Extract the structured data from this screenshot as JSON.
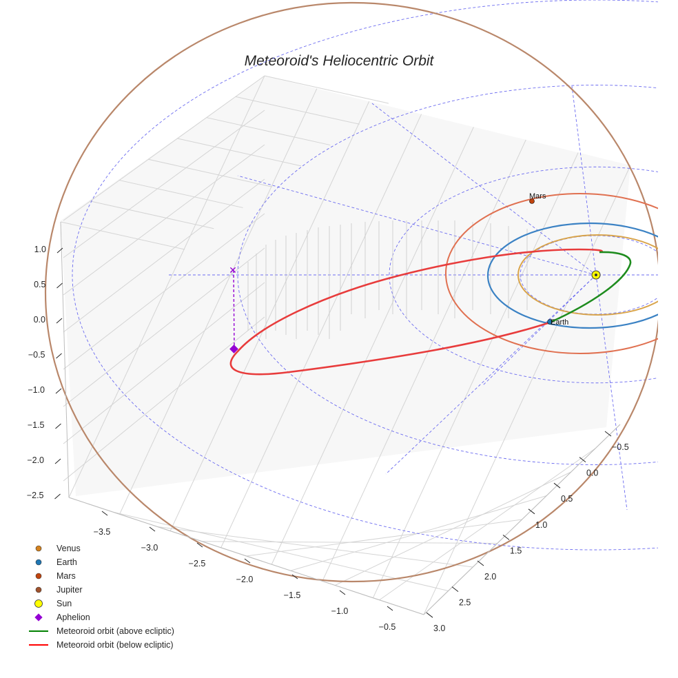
{
  "chart_data": {
    "type": "3d-line",
    "title": "Meteoroid's Heliocentric Orbit",
    "axes": {
      "x": {
        "ticks": [
          "−3.5",
          "−3.0",
          "−2.5",
          "−2.0",
          "−1.5",
          "−1.0",
          "−0.5"
        ]
      },
      "y": {
        "ticks": [
          "−0.5",
          "0.0",
          "0.5",
          "1.0",
          "1.5",
          "2.0",
          "2.5",
          "3.0"
        ]
      },
      "z": {
        "ticks": [
          "1.0",
          "0.5",
          "0.0",
          "−0.5",
          "−1.0",
          "−1.5",
          "−2.0",
          "−2.5"
        ]
      }
    },
    "legend": [
      {
        "label": "Venus",
        "color": "#d4821f",
        "marker": "circle"
      },
      {
        "label": "Earth",
        "color": "#1f77b4",
        "marker": "circle"
      },
      {
        "label": "Mars",
        "color": "#c1440e",
        "marker": "circle"
      },
      {
        "label": "Jupiter",
        "color": "#a0522d",
        "marker": "circle"
      },
      {
        "label": "Sun",
        "color": "#ffff00",
        "marker": "big-circle"
      },
      {
        "label": "Aphelion",
        "color": "#9400d3",
        "marker": "diamond"
      },
      {
        "label": "Meteoroid orbit (above ecliptic)",
        "color": "#008000",
        "marker": "line"
      },
      {
        "label": "Meteoroid orbit (below ecliptic)",
        "color": "#ff0000",
        "marker": "line"
      }
    ],
    "bodies": [
      {
        "name": "Sun"
      },
      {
        "name": "Earth",
        "label": "Earth"
      },
      {
        "name": "Mars",
        "label": "Mars"
      }
    ],
    "orbits": [
      {
        "name": "Venus",
        "color": "#d9a44a"
      },
      {
        "name": "Earth",
        "color": "#3b82c4"
      },
      {
        "name": "Mars",
        "color": "#e07050"
      },
      {
        "name": "Jupiter",
        "color": "#b9876a"
      },
      {
        "name": "Meteoroid orbit (above ecliptic)",
        "color": "#1e8c1e"
      },
      {
        "name": "Meteoroid orbit (below ecliptic)",
        "color": "#e83c3c"
      }
    ]
  }
}
